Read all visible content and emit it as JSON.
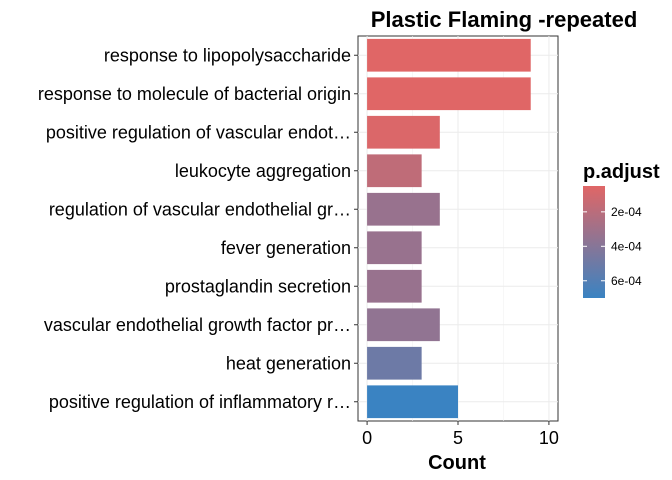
{
  "chart_data": {
    "type": "bar",
    "orientation": "horizontal",
    "title": "Plastic Flaming -repeated",
    "xlabel": "Count",
    "ylabel": "",
    "xlim": [
      -0.5,
      10.5
    ],
    "xticks": [
      0,
      5,
      10
    ],
    "grid": true,
    "categories": [
      "response to lipopolysaccharide",
      "response to molecule of bacterial origin",
      "positive regulation of vascular endot…",
      "leukocyte aggregation",
      "regulation of vascular endothelial gr…",
      "fever generation",
      "prostaglandin secretion",
      "vascular endothelial growth factor pr…",
      "heat generation",
      "positive regulation of inflammatory r…"
    ],
    "values": [
      9,
      9,
      4,
      3,
      4,
      3,
      3,
      4,
      3,
      5
    ],
    "p_adjust": [
      5e-05,
      5e-05,
      7e-05,
      0.00018,
      0.00033,
      0.00033,
      0.00033,
      0.00036,
      0.0005,
      0.0007
    ],
    "legend": {
      "title": "p.adjust",
      "placement": "right",
      "ticks": [
        {
          "value": 0.0002,
          "label": "2e-04"
        },
        {
          "value": 0.0004,
          "label": "4e-04"
        },
        {
          "value": 0.0006,
          "label": "6e-04"
        }
      ],
      "range": [
        5e-05,
        0.0007
      ],
      "color_low": "#E06666",
      "color_high": "#3A83C2"
    }
  }
}
